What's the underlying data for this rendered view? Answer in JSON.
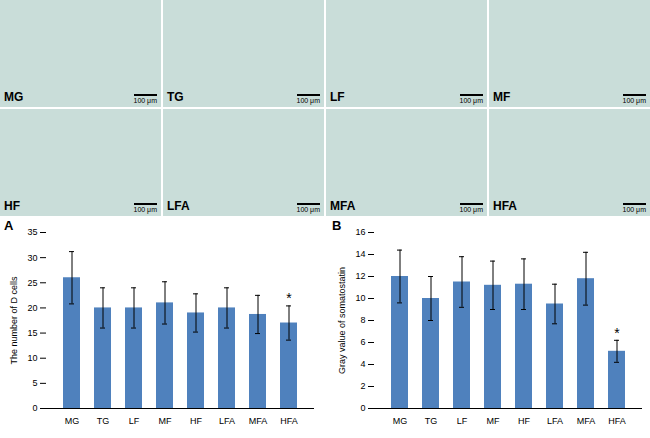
{
  "micrographs": {
    "labels": [
      "MG",
      "TG",
      "LF",
      "MF",
      "HF",
      "LFA",
      "MFA",
      "HFA"
    ],
    "scale_bar": "100 μm"
  },
  "chart_data": [
    {
      "type": "bar",
      "panel": "A",
      "y_label": "The number of D cells",
      "categories": [
        "MG",
        "TG",
        "LF",
        "MF",
        "HF",
        "LFA",
        "MFA",
        "HFA"
      ],
      "values": [
        26,
        20,
        20,
        21,
        19,
        20,
        18.7,
        17
      ],
      "errors": [
        5.2,
        4,
        4,
        4.2,
        3.8,
        4,
        3.8,
        3.4
      ],
      "color": "#4f81bd",
      "ylim": [
        0,
        35
      ],
      "yticks": [
        0,
        5,
        10,
        15,
        20,
        25,
        30,
        35
      ],
      "grid": false,
      "annotations": [
        {
          "category": "HFA",
          "text": "*"
        }
      ]
    },
    {
      "type": "bar",
      "panel": "B",
      "y_label": "Gray value of somatostatin",
      "categories": [
        "MG",
        "TG",
        "LF",
        "MF",
        "HF",
        "LFA",
        "MFA",
        "HFA"
      ],
      "values": [
        12,
        10,
        11.5,
        11.2,
        11.3,
        9.5,
        11.8,
        5.2
      ],
      "errors": [
        2.4,
        2,
        2.3,
        2.2,
        2.3,
        1.8,
        2.4,
        1
      ],
      "color": "#4f81bd",
      "ylim": [
        0,
        16
      ],
      "yticks": [
        0,
        2,
        4,
        6,
        8,
        10,
        12,
        14,
        16
      ],
      "grid": false,
      "annotations": [
        {
          "category": "HFA",
          "text": "*"
        }
      ]
    }
  ]
}
